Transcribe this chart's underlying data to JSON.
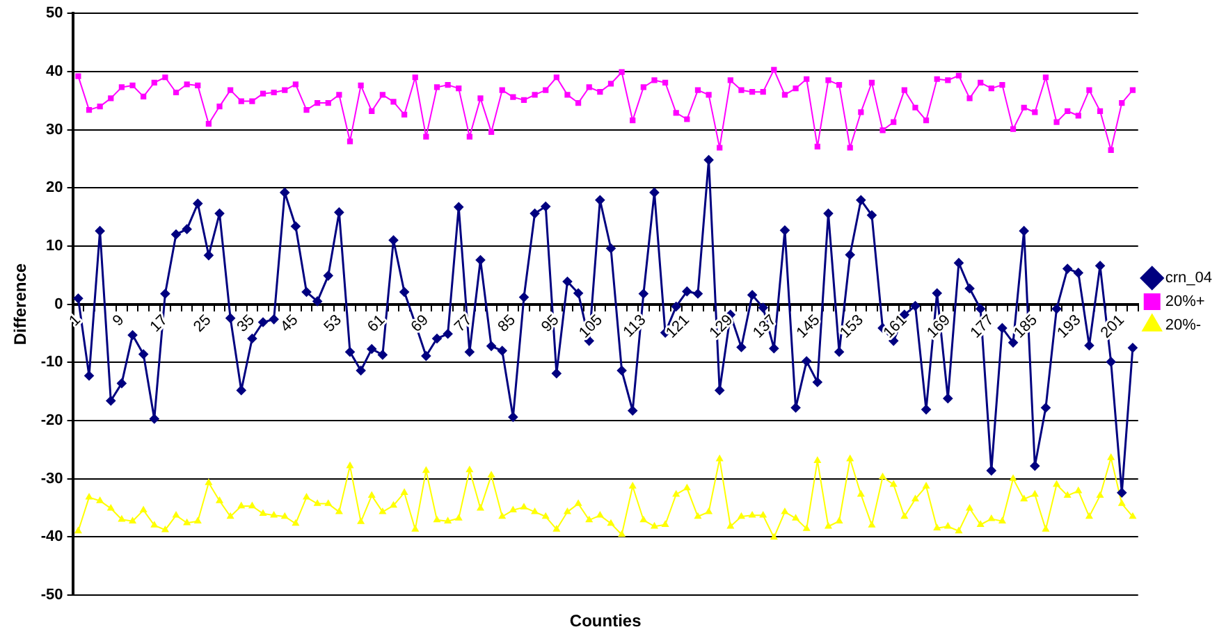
{
  "chart_data": {
    "type": "line",
    "xlabel": "Counties",
    "ylabel": "Difference",
    "categories": [
      "1",
      null,
      null,
      null,
      "9",
      null,
      null,
      null,
      "17",
      null,
      null,
      null,
      "25",
      null,
      null,
      null,
      "35",
      null,
      null,
      null,
      "45",
      null,
      null,
      null,
      "53",
      null,
      null,
      null,
      "61",
      null,
      null,
      null,
      "69",
      null,
      null,
      null,
      "77",
      null,
      null,
      null,
      "85",
      null,
      null,
      null,
      "95",
      null,
      null,
      null,
      "105",
      null,
      null,
      null,
      "113",
      null,
      null,
      null,
      "121",
      null,
      null,
      null,
      "129",
      null,
      null,
      null,
      "137",
      null,
      null,
      null,
      "145",
      null,
      null,
      null,
      "153",
      null,
      null,
      null,
      "161",
      null,
      null,
      null,
      "169",
      null,
      null,
      null,
      "177",
      null,
      null,
      null,
      "185",
      null,
      null,
      null,
      "193",
      null,
      null,
      null,
      "201",
      null
    ],
    "series": [
      {
        "name": "crn_04",
        "color": "#000080",
        "marker": "diamond",
        "values": [
          1.0,
          -12.3,
          12.6,
          -16.6,
          -13.6,
          -5.3,
          -8.6,
          -19.7,
          1.8,
          12.0,
          12.9,
          17.3,
          8.4,
          15.6,
          -2.4,
          -14.8,
          -5.9,
          -3.1,
          -2.6,
          19.2,
          13.4,
          2.1,
          0.5,
          4.9,
          15.8,
          -8.2,
          -11.4,
          -7.7,
          -8.7,
          11.0,
          2.1,
          -3.3,
          -8.9,
          -5.9,
          -5.1,
          16.7,
          -8.2,
          7.6,
          -7.2,
          -8.0,
          -19.4,
          1.2,
          15.6,
          16.8,
          -11.9,
          3.9,
          1.9,
          -6.3,
          17.9,
          9.6,
          -11.4,
          -18.3,
          1.8,
          19.2,
          -4.9,
          -0.4,
          2.2,
          1.8,
          24.8,
          -14.8,
          -1.8,
          -7.4,
          1.6,
          -0.6,
          -7.6,
          12.7,
          -17.8,
          -9.8,
          -13.4,
          15.6,
          -8.2,
          8.5,
          17.9,
          15.3,
          -4.1,
          -6.3,
          -1.8,
          -0.3,
          -18.1,
          1.9,
          -16.2,
          7.1,
          2.7,
          -0.8,
          -28.6,
          -4.1,
          -6.6,
          12.6,
          -27.8,
          -17.8,
          -0.8,
          6.1,
          5.4,
          -7.1,
          6.6,
          -9.9,
          -32.4,
          -7.5
        ]
      },
      {
        "name": "20%+",
        "color": "#ff00ff",
        "marker": "square",
        "values": [
          39.2,
          33.4,
          34.0,
          35.4,
          37.3,
          37.6,
          35.7,
          38.1,
          39.0,
          36.4,
          37.8,
          37.6,
          31.0,
          34.0,
          36.8,
          34.9,
          34.9,
          36.2,
          36.4,
          36.8,
          37.8,
          33.4,
          34.6,
          34.6,
          36.0,
          28.0,
          37.6,
          33.2,
          36.0,
          34.8,
          32.6,
          39.0,
          28.8,
          37.3,
          37.7,
          37.1,
          28.8,
          35.4,
          29.6,
          36.8,
          35.6,
          35.1,
          36.0,
          36.8,
          39.0,
          36.0,
          34.6,
          37.3,
          36.5,
          37.9,
          39.9,
          31.6,
          37.3,
          38.5,
          38.1,
          32.9,
          31.8,
          36.8,
          36.0,
          26.9,
          38.5,
          36.8,
          36.5,
          36.5,
          40.3,
          36.0,
          37.1,
          38.7,
          27.1,
          38.5,
          37.7,
          26.9,
          33.0,
          38.1,
          29.9,
          31.3,
          36.8,
          33.8,
          31.6,
          38.7,
          38.5,
          39.3,
          35.4,
          38.1,
          37.1,
          37.7,
          30.1,
          33.8,
          33.0,
          39.0,
          31.3,
          33.2,
          32.4,
          36.8,
          33.2,
          26.5,
          34.6,
          36.8
        ]
      },
      {
        "name": "20%-",
        "color": "#ffff00",
        "marker": "triangle",
        "values": [
          -39.0,
          -33.2,
          -33.8,
          -35.1,
          -37.0,
          -37.3,
          -35.4,
          -38.0,
          -38.8,
          -36.3,
          -37.6,
          -37.3,
          -30.7,
          -33.8,
          -36.5,
          -34.7,
          -34.7,
          -36.0,
          -36.3,
          -36.5,
          -37.7,
          -33.2,
          -34.3,
          -34.3,
          -35.7,
          -27.8,
          -37.4,
          -32.9,
          -35.7,
          -34.6,
          -32.4,
          -38.7,
          -28.6,
          -37.1,
          -37.3,
          -36.8,
          -28.5,
          -35.1,
          -29.4,
          -36.5,
          -35.4,
          -34.9,
          -35.7,
          -36.5,
          -38.7,
          -35.7,
          -34.3,
          -37.1,
          -36.3,
          -37.7,
          -39.6,
          -31.3,
          -37.1,
          -38.2,
          -37.9,
          -32.7,
          -31.6,
          -36.5,
          -35.7,
          -26.6,
          -38.2,
          -36.5,
          -36.3,
          -36.3,
          -40.1,
          -35.7,
          -36.8,
          -38.6,
          -26.9,
          -38.2,
          -37.3,
          -26.6,
          -32.7,
          -38.0,
          -29.7,
          -31.0,
          -36.5,
          -33.5,
          -31.3,
          -38.5,
          -38.2,
          -39.0,
          -35.1,
          -37.9,
          -36.9,
          -37.3,
          -30.0,
          -33.5,
          -32.7,
          -38.7,
          -31.0,
          -32.9,
          -32.1,
          -36.5,
          -32.9,
          -26.4,
          -34.3,
          -36.5
        ]
      }
    ],
    "ylim": [
      -50,
      50
    ],
    "yticks": [
      -50,
      -40,
      -30,
      -20,
      -10,
      0,
      10,
      20,
      30,
      40,
      50
    ],
    "grid": "y",
    "legend": "right"
  }
}
